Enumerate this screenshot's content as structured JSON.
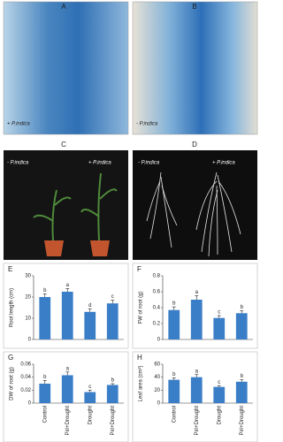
{
  "photos": [
    {
      "panel": "A",
      "label": "+ P.indica"
    },
    {
      "panel": "B",
      "label": "- P.indica"
    },
    {
      "panel": "C",
      "labels": [
        "- P.indica",
        "+ P.indica"
      ]
    },
    {
      "panel": "D",
      "labels": [
        "- P.indica",
        "+ P.indica"
      ]
    }
  ],
  "chart_data": [
    {
      "type": "bar",
      "panel": "E",
      "ylabel": "Root length (cm)",
      "values": [
        20,
        22.5,
        13,
        17
      ],
      "errors": [
        1.5,
        1.5,
        1.5,
        1.5
      ],
      "letters": [
        "b",
        "a",
        "d",
        "c"
      ],
      "color": "#3a7ec8",
      "ylim": [
        0,
        30
      ],
      "yticks": [
        0,
        10,
        20,
        30
      ]
    },
    {
      "type": "bar",
      "panel": "F",
      "ylabel": "FW of root (g)",
      "values": [
        0.37,
        0.5,
        0.27,
        0.33
      ],
      "errors": [
        0.04,
        0.05,
        0.03,
        0.03
      ],
      "letters": [
        "b",
        "a",
        "c",
        "b"
      ],
      "color": "#3a7ec8",
      "ylim": [
        0,
        0.8
      ],
      "yticks": [
        0,
        0.2,
        0.4,
        0.6,
        0.8
      ]
    },
    {
      "type": "bar",
      "panel": "G",
      "ylabel": "DW of root (g)",
      "categories": [
        "Control",
        "Piri+Drought",
        "Drought",
        "Piri+Drought"
      ],
      "values": [
        0.03,
        0.043,
        0.017,
        0.028
      ],
      "errors": [
        0.005,
        0.005,
        0.003,
        0.002
      ],
      "letters": [
        "b",
        "a",
        "c",
        "b"
      ],
      "color": "#3a7ec8",
      "ylim": [
        0,
        0.06
      ],
      "yticks": [
        0,
        0.02,
        0.04,
        0.06
      ]
    },
    {
      "type": "bar",
      "panel": "H",
      "ylabel": "Leaf area (cm²)",
      "categories": [
        "Control",
        "Piri+Drought",
        "Drought",
        "Piri+Drought"
      ],
      "values": [
        36,
        40,
        25,
        33
      ],
      "errors": [
        3,
        4,
        2,
        3
      ],
      "letters": [
        "b",
        "a",
        "c",
        "b"
      ],
      "color": "#3a7ec8",
      "ylim": [
        0,
        60
      ],
      "yticks": [
        0,
        20,
        40,
        60
      ]
    }
  ]
}
